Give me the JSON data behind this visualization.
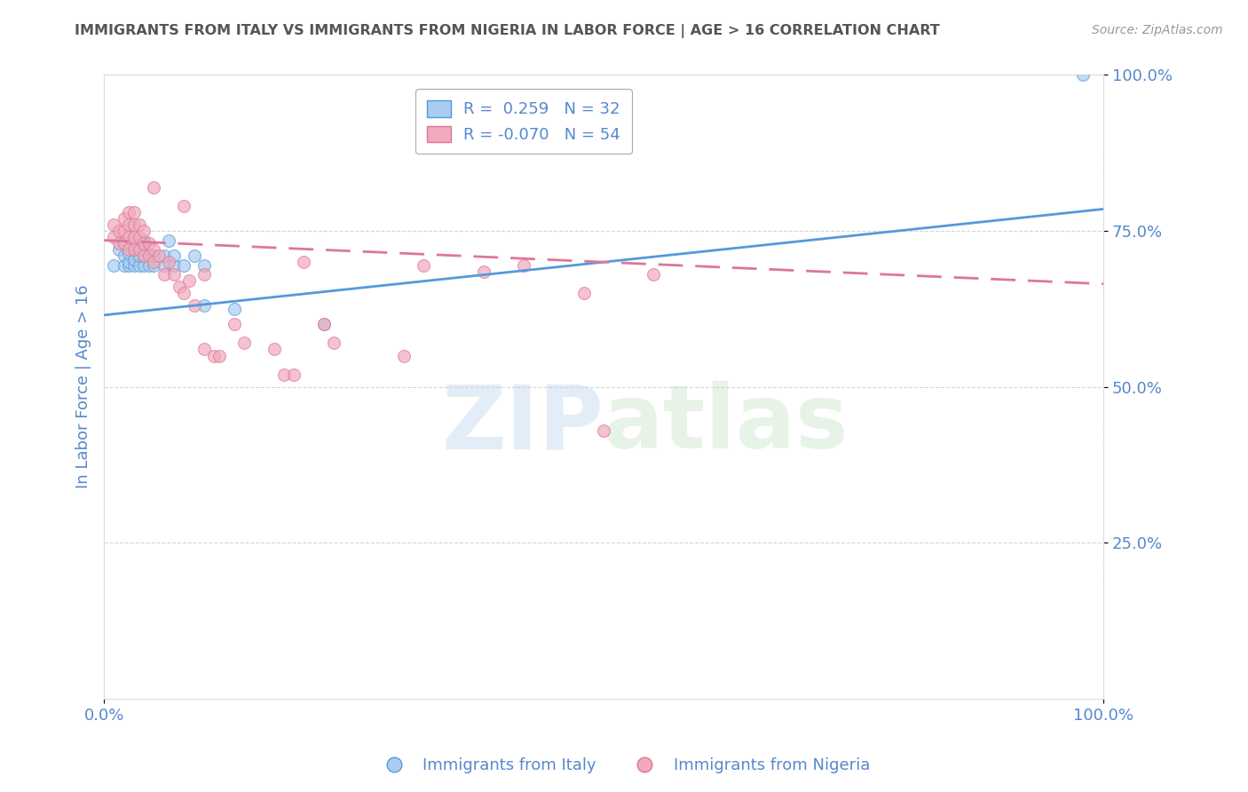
{
  "title": "IMMIGRANTS FROM ITALY VS IMMIGRANTS FROM NIGERIA IN LABOR FORCE | AGE > 16 CORRELATION CHART",
  "source": "Source: ZipAtlas.com",
  "ylabel": "In Labor Force | Age > 16",
  "xlim": [
    0,
    1.0
  ],
  "ylim": [
    0,
    1.0
  ],
  "ytick_labels": [
    "25.0%",
    "50.0%",
    "75.0%",
    "100.0%"
  ],
  "ytick_positions": [
    0.25,
    0.5,
    0.75,
    1.0
  ],
  "watermark_zip": "ZIP",
  "watermark_atlas": "atlas",
  "legend_R_italy": " 0.259",
  "legend_N_italy": "32",
  "legend_R_nigeria": "-0.070",
  "legend_N_nigeria": "54",
  "italy_color": "#aaccee",
  "nigeria_color": "#f0aabb",
  "italy_line_color": "#5599dd",
  "nigeria_line_color": "#dd7799",
  "background_color": "#ffffff",
  "grid_color": "#cccccc",
  "title_color": "#555555",
  "axis_label_color": "#5588cc",
  "tick_label_color": "#5588cc",
  "italy_scatter": [
    [
      0.01,
      0.695
    ],
    [
      0.015,
      0.72
    ],
    [
      0.02,
      0.695
    ],
    [
      0.02,
      0.71
    ],
    [
      0.025,
      0.695
    ],
    [
      0.025,
      0.7
    ],
    [
      0.025,
      0.715
    ],
    [
      0.03,
      0.695
    ],
    [
      0.03,
      0.705
    ],
    [
      0.03,
      0.72
    ],
    [
      0.03,
      0.735
    ],
    [
      0.035,
      0.695
    ],
    [
      0.035,
      0.71
    ],
    [
      0.04,
      0.695
    ],
    [
      0.04,
      0.71
    ],
    [
      0.04,
      0.72
    ],
    [
      0.04,
      0.735
    ],
    [
      0.045,
      0.695
    ],
    [
      0.05,
      0.695
    ],
    [
      0.05,
      0.71
    ],
    [
      0.06,
      0.695
    ],
    [
      0.06,
      0.71
    ],
    [
      0.065,
      0.735
    ],
    [
      0.07,
      0.695
    ],
    [
      0.07,
      0.71
    ],
    [
      0.08,
      0.695
    ],
    [
      0.09,
      0.71
    ],
    [
      0.1,
      0.695
    ],
    [
      0.1,
      0.63
    ],
    [
      0.13,
      0.625
    ],
    [
      0.22,
      0.6
    ],
    [
      0.98,
      1.0
    ]
  ],
  "nigeria_scatter": [
    [
      0.01,
      0.74
    ],
    [
      0.01,
      0.76
    ],
    [
      0.015,
      0.73
    ],
    [
      0.015,
      0.75
    ],
    [
      0.02,
      0.73
    ],
    [
      0.02,
      0.75
    ],
    [
      0.02,
      0.77
    ],
    [
      0.025,
      0.72
    ],
    [
      0.025,
      0.74
    ],
    [
      0.025,
      0.76
    ],
    [
      0.025,
      0.78
    ],
    [
      0.03,
      0.72
    ],
    [
      0.03,
      0.74
    ],
    [
      0.03,
      0.76
    ],
    [
      0.03,
      0.78
    ],
    [
      0.035,
      0.72
    ],
    [
      0.035,
      0.74
    ],
    [
      0.035,
      0.76
    ],
    [
      0.04,
      0.71
    ],
    [
      0.04,
      0.73
    ],
    [
      0.04,
      0.75
    ],
    [
      0.045,
      0.71
    ],
    [
      0.045,
      0.73
    ],
    [
      0.05,
      0.7
    ],
    [
      0.05,
      0.72
    ],
    [
      0.055,
      0.71
    ],
    [
      0.06,
      0.68
    ],
    [
      0.065,
      0.7
    ],
    [
      0.07,
      0.68
    ],
    [
      0.075,
      0.66
    ],
    [
      0.08,
      0.65
    ],
    [
      0.085,
      0.67
    ],
    [
      0.09,
      0.63
    ],
    [
      0.1,
      0.68
    ],
    [
      0.1,
      0.56
    ],
    [
      0.11,
      0.55
    ],
    [
      0.115,
      0.55
    ],
    [
      0.13,
      0.6
    ],
    [
      0.14,
      0.57
    ],
    [
      0.17,
      0.56
    ],
    [
      0.18,
      0.52
    ],
    [
      0.19,
      0.52
    ],
    [
      0.22,
      0.6
    ],
    [
      0.23,
      0.57
    ],
    [
      0.3,
      0.55
    ],
    [
      0.05,
      0.82
    ],
    [
      0.08,
      0.79
    ],
    [
      0.2,
      0.7
    ],
    [
      0.32,
      0.695
    ],
    [
      0.38,
      0.685
    ],
    [
      0.42,
      0.695
    ],
    [
      0.48,
      0.65
    ],
    [
      0.5,
      0.43
    ],
    [
      0.55,
      0.68
    ]
  ],
  "italy_line_x": [
    0.0,
    1.0
  ],
  "italy_line_y": [
    0.615,
    0.785
  ],
  "nigeria_line_x": [
    0.0,
    1.0
  ],
  "nigeria_line_y": [
    0.735,
    0.665
  ],
  "marker_size": 100
}
